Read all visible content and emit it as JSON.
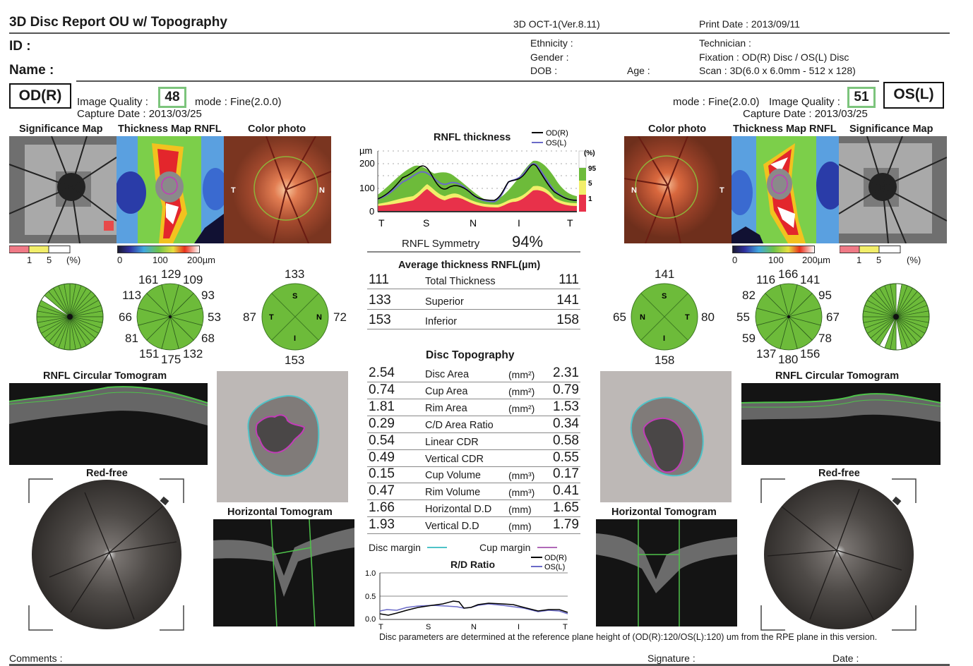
{
  "header": {
    "title": "3D Disc Report OU w/ Topography",
    "device": "3D OCT-1(Ver.8.11)",
    "print_date": "Print Date : 2013/09/11",
    "id_label": "ID :",
    "name_label": "Name :",
    "ethnicity": "Ethnicity :",
    "gender": "Gender :",
    "dob": "DOB :",
    "age": "Age :",
    "technician": "Technician :",
    "fixation": "Fixation : OD(R) Disc / OS(L) Disc",
    "scan": "Scan : 3D(6.0 x 6.0mm - 512 x 128)"
  },
  "od": {
    "eye": "OD(R)",
    "iq_label": "Image Quality :",
    "iq_value": "48",
    "mode": "mode : Fine(2.0.0)",
    "capture": "Capture Date : 2013/03/25",
    "sig_map": "Significance Map",
    "thick_map": "Thickness Map RNFL",
    "color_photo": "Color photo",
    "photo_t": "T",
    "photo_n": "N",
    "clock": [
      "129",
      "109",
      "93",
      "53",
      "68",
      "132",
      "175",
      "151",
      "81",
      "66",
      "113",
      "161"
    ],
    "quad": {
      "s": "133",
      "n": "72",
      "i": "153",
      "t": "87",
      "s_lbl": "S",
      "n_lbl": "N",
      "i_lbl": "I",
      "t_lbl": "T"
    },
    "circ_tomo": "RNFL Circular Tomogram",
    "red_free": "Red-free",
    "horiz_tomo": "Horizontal Tomogram"
  },
  "os": {
    "eye": "OS(L)",
    "iq_label": "Image Quality :",
    "iq_value": "51",
    "mode": "mode : Fine(2.0.0)",
    "capture": "Capture Date : 2013/03/25",
    "sig_map": "Significance Map",
    "thick_map": "Thickness Map RNFL",
    "color_photo": "Color photo",
    "photo_t": "T",
    "photo_n": "N",
    "clock": [
      "166",
      "141",
      "95",
      "67",
      "78",
      "156",
      "180",
      "137",
      "59",
      "55",
      "82",
      "116"
    ],
    "quad": {
      "s": "141",
      "n": "65",
      "i": "158",
      "t": "80",
      "s_lbl": "S",
      "n_lbl": "N",
      "i_lbl": "I",
      "t_lbl": "T"
    },
    "circ_tomo": "RNFL Circular Tomogram",
    "red_free": "Red-free",
    "horiz_tomo": "Horizontal Tomogram"
  },
  "scales": {
    "sig_1": "1",
    "sig_5": "5",
    "sig_pct": "(%)",
    "th_0": "0",
    "th_100": "100",
    "th_200": "200µm"
  },
  "rnfl_chart": {
    "title": "RNFL thickness",
    "legend_od": "OD(R)",
    "legend_os": "OS(L)",
    "y_unit": "µm",
    "yticks": [
      "200",
      "100",
      "0"
    ],
    "xticks": [
      "T",
      "S",
      "N",
      "I",
      "T"
    ],
    "band_labels": [
      "(%)",
      "95",
      "5",
      "1"
    ],
    "symmetry_label": "RNFL Symmetry",
    "symmetry_value": "94%"
  },
  "avg_thickness": {
    "title": "Average thickness RNFL(µm)",
    "rows": [
      {
        "od": "111",
        "label": "Total Thickness",
        "os": "111"
      },
      {
        "od": "133",
        "label": "Superior",
        "os": "141"
      },
      {
        "od": "153",
        "label": "Inferior",
        "os": "158"
      }
    ]
  },
  "disc_topo": {
    "title": "Disc Topography",
    "rows": [
      {
        "od": "2.54",
        "label": "Disc Area",
        "unit": "(mm²)",
        "os": "2.31"
      },
      {
        "od": "0.74",
        "label": "Cup Area",
        "unit": "(mm²)",
        "os": "0.79"
      },
      {
        "od": "1.81",
        "label": "Rim Area",
        "unit": "(mm²)",
        "os": "1.53"
      },
      {
        "od": "0.29",
        "label": "C/D Area Ratio",
        "unit": "",
        "os": "0.34"
      },
      {
        "od": "0.54",
        "label": "Linear CDR",
        "unit": "",
        "os": "0.58"
      },
      {
        "od": "0.49",
        "label": "Vertical CDR",
        "unit": "",
        "os": "0.55"
      },
      {
        "od": "0.15",
        "label": "Cup Volume",
        "unit": "(mm³)",
        "os": "0.17"
      },
      {
        "od": "0.47",
        "label": "Rim Volume",
        "unit": "(mm³)",
        "os": "0.41"
      },
      {
        "od": "1.66",
        "label": "Horizontal D.D",
        "unit": "(mm)",
        "os": "1.65"
      },
      {
        "od": "1.93",
        "label": "Vertical D.D",
        "unit": "(mm)",
        "os": "1.79"
      }
    ],
    "disc_margin": "Disc margin",
    "cup_margin": "Cup margin"
  },
  "rd_chart": {
    "title": "R/D Ratio",
    "legend_od": "OD(R)",
    "legend_os": "OS(L)",
    "yticks": [
      "1.0",
      "0.5",
      "0.0"
    ],
    "xticks": [
      "T",
      "S",
      "N",
      "I",
      "T"
    ]
  },
  "footer": {
    "note": "Disc parameters are determined at the reference plane height of (OD(R):120/OS(L):120) um from the RPE plane in this version.",
    "comments": "Comments :",
    "signature": "Signature :",
    "date": "Date :"
  },
  "colors": {
    "green": "#6dbb3a",
    "yellow": "#f2ee6a",
    "red": "#e8314a",
    "qbox": "#7cc47c",
    "disc_margin": "#4fc3c8",
    "cup_margin": "#c23cb8"
  }
}
